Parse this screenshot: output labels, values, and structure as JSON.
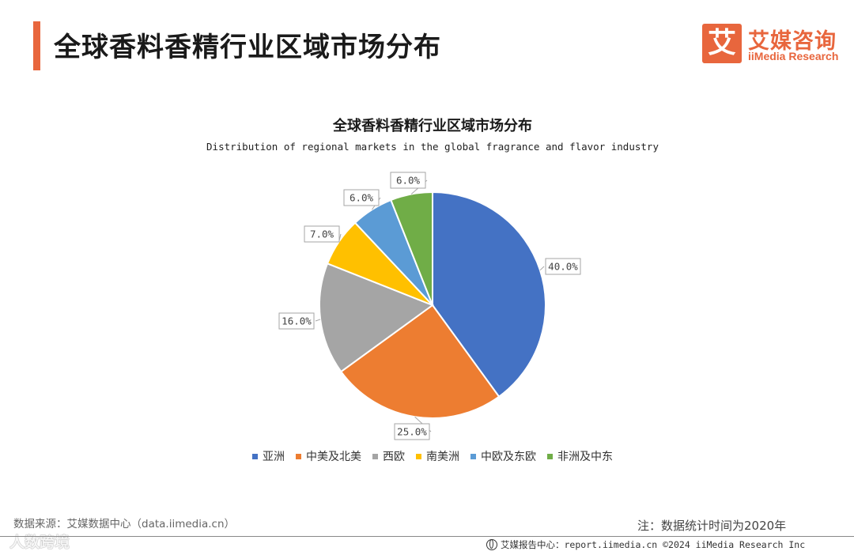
{
  "header": {
    "page_title": "全球香料香精行业区域市场分布",
    "logo_mark": "艾",
    "logo_cn": "艾媒咨询",
    "logo_en": "iiMedia Research"
  },
  "chart_data": {
    "type": "pie",
    "title": "全球香料香精行业区域市场分布",
    "subtitle": "Distribution of regional markets in the global fragrance and flavor industry",
    "categories": [
      "亚洲",
      "中美及北美",
      "西欧",
      "南美洲",
      "中欧及东欧",
      "非洲及中东"
    ],
    "values": [
      40.0,
      25.0,
      16.0,
      7.0,
      6.0,
      6.0
    ],
    "labels": [
      "40.0%",
      "25.0%",
      "16.0%",
      "7.0%",
      "6.0%",
      "6.0%"
    ],
    "colors": [
      "#4472c4",
      "#ed7d31",
      "#a5a5a5",
      "#ffc000",
      "#5b9bd5",
      "#70ad47"
    ],
    "legend_position": "bottom"
  },
  "footer": {
    "source": "数据来源：艾媒数据中心（data.iimedia.cn）",
    "note": "注：数据统计时间为2020年",
    "watermark": "人数跨境",
    "report_text": "艾媒报告中心：report.iimedia.cn  ©2024  iiMedia Research  Inc"
  }
}
